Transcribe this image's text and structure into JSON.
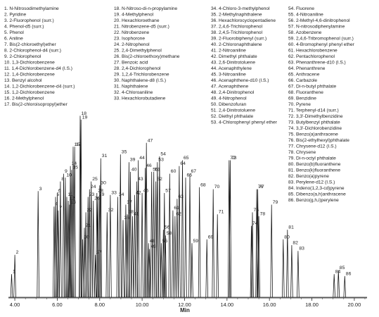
{
  "chart_data": {
    "type": "line",
    "title": "",
    "xlabel": "Min",
    "ylabel": "",
    "xlim": [
      3.7,
      20.6
    ],
    "ylim": [
      0,
      100
    ],
    "grid": false,
    "legend_placement": "top",
    "ticks": [
      {
        "value": 4,
        "label": "4.00"
      },
      {
        "value": 6,
        "label": "6.00"
      },
      {
        "value": 8,
        "label": "8.00"
      },
      {
        "value": 10,
        "label": "10.00"
      },
      {
        "value": 12,
        "label": "12.00"
      },
      {
        "value": 14,
        "label": "14.00"
      },
      {
        "value": 16,
        "label": "16.00"
      },
      {
        "value": 18,
        "label": "18.00"
      },
      {
        "value": 20,
        "label": "20.00"
      }
    ],
    "legend_columns": [
      [
        "1. N-Nitrosodimethylamine",
        "2. Pyridine",
        "3. 2-Fluorophenol (surr.)",
        "4. Phenol-d5 (surr.)",
        "5. Phenol",
        "6. Aniline",
        "7. Bis(2-chloroethyl)ether",
        "8. 2-Chlorophenol-d4 (surr.)",
        "9. 2-Chlorophenol",
        "10. 1,3-Dichlorobenzene",
        "11. 1,4-Dichlorobenzene-d4 (I.S.)",
        "12. 1,4-Dichlorobenzene",
        "13. Benzyl alcohol",
        "14. 1,2-Dichlorobenzene-d4 (surr.)",
        "15. 1,2-Dichlorobenzene",
        "16. 2-Methylphenol",
        "17. Bis(2-chloroisopropyl)ether"
      ],
      [
        "18. N-Nitroso-di-n-propylamine",
        "19. 4-Methylphenol",
        "20. Hexachloroethane",
        "21. Nitrobenzene-d5 (surr.)",
        "22. Nitrobenzene",
        "23. Isophorone",
        "24. 2-Nitrophenol",
        "25. 2,4-Dimethylphenol",
        "26. Bis(2-chloroethoxy)methane",
        "27. Benzoic acid",
        "28. 2,4-Dichlorophenol",
        "29. 1,2,4-Trichlorobenzene",
        "30. Naphthalene-d8 (I.S.)",
        "31. Naphthalene",
        "32. 4-Chloroaniline",
        "33. Hexachlorobutadiene"
      ],
      [
        "34. 4-Chloro-3-methylphenol",
        "35. 2-Methylnaphthalene",
        "36. Hexachlorocyclopentadiene",
        "37. 2,4,6-Trichlorophenol",
        "38. 2,4,5-Trichlorophenol",
        "39. 2-Fluorobiphenyl (surr.)",
        "40. 2-Chloronaphthalene",
        "41. 2-Nitroaniline",
        "42. Dimethyl phthalate",
        "43. 2,6-Dinitrotoluene",
        "44. Acenaphthylene",
        "45. 3-Nitroaniline",
        "46. Acenaphthene-d10 (I.S.)",
        "47. Acenaphthene",
        "48. 2,4-Dinitrophenol",
        "49. 4-Nitrophenol",
        "50. Dibenzofuran",
        "51. 2,4-Dinitrotoluene",
        "52. Diethyl phthalate",
        "53. 4-Chlorophenyl phenyl ether"
      ],
      [
        "54. Fluorene",
        "55. 4-Nitroaniline",
        "56. 2-Methyl-4,6-dinitrophenol",
        "57. N-nitrosodiphenylamine",
        "58. Azobenzene",
        "59. 2,4,6-Tribromophenol (surr.)",
        "60. 4-Bromophenyl phenyl ether",
        "61. Hexachlorobenzene",
        "62. Pentachlorophenol",
        "63. Phenanthrene-d10 (I.S.)",
        "64. Phenanthrene",
        "65. Anthracene",
        "66. Carbazole",
        "67. Di-n-butyl phthalate",
        "68. Fluoranthene",
        "69. Benzidine",
        "70. Pyrene",
        "71. Terphenyl-d14 (surr.)",
        "72. 3,3'-Dimethylbenzidine",
        "73. Butylbenzyl phthalate",
        "74. 3,3'-Dichlorobenzidine",
        "75. Benzo(a)anthracene",
        "76. Bis(2-ethylhexyl)phthalate",
        "77. Chrysene-d12 (I.S.)",
        "78. Chrysene",
        "79. Di-n-octyl phthalate",
        "80. Benzo(b)fluoranthene",
        "81. Benzo(k)fluoranthene",
        "82. Benzo(a)pyrene",
        "83. Perylene-d12 (I.S.)",
        "84. Indeno(1,2,3-cd)pyrene",
        "85. Dibenzo(a,h)anthracene",
        "86. Benzo(g,h,i)perylene"
      ]
    ],
    "peaks": [
      {
        "label": "1",
        "rt": 3.85,
        "height": 12
      },
      {
        "label": "2",
        "rt": 4.0,
        "height": 22
      },
      {
        "label": "3",
        "rt": 5.1,
        "height": 55
      },
      {
        "label": "4",
        "rt": 5.85,
        "height": 47
      },
      {
        "label": "5",
        "rt": 5.92,
        "height": 52
      },
      {
        "label": "6",
        "rt": 6.0,
        "height": 54
      },
      {
        "label": "7",
        "rt": 6.05,
        "height": 45
      },
      {
        "label": "8",
        "rt": 6.15,
        "height": 60
      },
      {
        "label": "9",
        "rt": 6.3,
        "height": 64
      },
      {
        "label": "10",
        "rt": 6.38,
        "height": 62
      },
      {
        "label": "11",
        "rt": 6.45,
        "height": 52
      },
      {
        "label": "12",
        "rt": 6.52,
        "height": 50
      },
      {
        "label": "13",
        "rt": 6.58,
        "height": 48
      },
      {
        "label": "14",
        "rt": 6.62,
        "height": 68
      },
      {
        "label": "15",
        "rt": 6.68,
        "height": 66
      },
      {
        "label": "16",
        "rt": 6.75,
        "height": 78
      },
      {
        "label": "17",
        "rt": 6.82,
        "height": 78
      },
      {
        "label": "18",
        "rt": 7.08,
        "height": 94
      },
      {
        "label": "19",
        "rt": 7.12,
        "height": 92
      },
      {
        "label": "20",
        "rt": 7.2,
        "height": 30
      },
      {
        "label": "21",
        "rt": 7.28,
        "height": 36
      },
      {
        "label": "22",
        "rt": 7.35,
        "height": 44
      },
      {
        "label": "23",
        "rt": 7.45,
        "height": 52
      },
      {
        "label": "24",
        "rt": 7.52,
        "height": 56
      },
      {
        "label": "25",
        "rt": 7.6,
        "height": 60
      },
      {
        "label": "26",
        "rt": 7.7,
        "height": 50
      },
      {
        "label": "27",
        "rt": 7.8,
        "height": 22
      },
      {
        "label": "28",
        "rt": 7.87,
        "height": 54
      },
      {
        "label": "29",
        "rt": 7.92,
        "height": 52
      },
      {
        "label": "30",
        "rt": 8.0,
        "height": 58
      },
      {
        "label": "31",
        "rt": 8.05,
        "height": 72
      },
      {
        "label": "32",
        "rt": 8.35,
        "height": 44
      },
      {
        "label": "33",
        "rt": 8.5,
        "height": 53
      },
      {
        "label": "34",
        "rt": 8.85,
        "height": 52
      },
      {
        "label": "35",
        "rt": 8.98,
        "height": 74
      },
      {
        "label": "36",
        "rt": 9.1,
        "height": 40
      },
      {
        "label": "37",
        "rt": 9.23,
        "height": 48
      },
      {
        "label": "38",
        "rt": 9.3,
        "height": 43
      },
      {
        "label": "39",
        "rt": 9.38,
        "height": 70
      },
      {
        "label": "40",
        "rt": 9.45,
        "height": 65
      },
      {
        "label": "41",
        "rt": 9.55,
        "height": 42
      },
      {
        "label": "42",
        "rt": 9.65,
        "height": 53
      },
      {
        "label": "43",
        "rt": 9.75,
        "height": 60
      },
      {
        "label": "44",
        "rt": 9.82,
        "height": 71
      },
      {
        "label": "45",
        "rt": 10.0,
        "height": 54
      },
      {
        "label": "46",
        "rt": 10.15,
        "height": 67
      },
      {
        "label": "47",
        "rt": 10.2,
        "height": 80
      },
      {
        "label": "48",
        "rt": 10.3,
        "height": 28
      },
      {
        "label": "49",
        "rt": 10.35,
        "height": 25
      },
      {
        "label": "50",
        "rt": 10.45,
        "height": 65
      },
      {
        "label": "51",
        "rt": 10.55,
        "height": 65
      },
      {
        "label": "52",
        "rt": 10.65,
        "height": 60
      },
      {
        "label": "53",
        "rt": 10.72,
        "height": 70
      },
      {
        "label": "54",
        "rt": 10.82,
        "height": 73
      },
      {
        "label": "55",
        "rt": 10.9,
        "height": 28
      },
      {
        "label": "56",
        "rt": 11.0,
        "height": 35
      },
      {
        "label": "57",
        "rt": 11.05,
        "height": 54
      },
      {
        "label": "58",
        "rt": 11.1,
        "height": 32
      },
      {
        "label": "59",
        "rt": 12.35,
        "height": 28
      },
      {
        "label": "60",
        "rt": 11.3,
        "height": 64
      },
      {
        "label": "61",
        "rt": 11.45,
        "height": 45
      },
      {
        "label": "62",
        "rt": 11.55,
        "height": 42
      },
      {
        "label": "63",
        "rt": 11.65,
        "height": 51
      },
      {
        "label": "64",
        "rt": 11.75,
        "height": 68
      },
      {
        "label": "65",
        "rt": 11.9,
        "height": 71
      },
      {
        "label": "66",
        "rt": 12.05,
        "height": 62
      },
      {
        "label": "67",
        "rt": 12.25,
        "height": 64
      },
      {
        "label": "68",
        "rt": 12.7,
        "height": 57
      },
      {
        "label": "69",
        "rt": 13.05,
        "height": 30
      },
      {
        "label": "70",
        "rt": 13.35,
        "height": 56
      },
      {
        "label": "71",
        "rt": 13.55,
        "height": 43
      },
      {
        "label": "72",
        "rt": 14.1,
        "height": 71
      },
      {
        "label": "73",
        "rt": 14.15,
        "height": 71
      },
      {
        "label": "74",
        "rt": 15.15,
        "height": 37
      },
      {
        "label": "75",
        "rt": 15.2,
        "height": 44
      },
      {
        "label": "76",
        "rt": 15.4,
        "height": 56
      },
      {
        "label": "77",
        "rt": 15.45,
        "height": 56
      },
      {
        "label": "78",
        "rt": 15.5,
        "height": 42
      },
      {
        "label": "79",
        "rt": 16.1,
        "height": 48
      },
      {
        "label": "80",
        "rt": 16.65,
        "height": 30
      },
      {
        "label": "81",
        "rt": 16.85,
        "height": 35
      },
      {
        "label": "82",
        "rt": 17.05,
        "height": 27
      },
      {
        "label": "83",
        "rt": 17.35,
        "height": 24
      },
      {
        "label": "84",
        "rt": 19.05,
        "height": 12
      },
      {
        "label": "85",
        "rt": 19.25,
        "height": 14
      },
      {
        "label": "86",
        "rt": 19.55,
        "height": 11
      }
    ]
  }
}
